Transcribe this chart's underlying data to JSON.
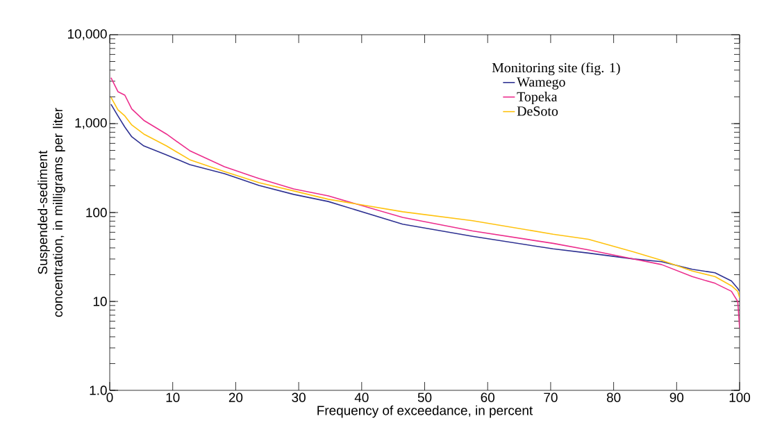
{
  "chart_data": {
    "type": "line",
    "xlabel": "Frequency of exceedance, in percent",
    "ylabel": "Suspended-sediment concentration, in milligrams per liter",
    "legend_title": "Monitoring site (fig. 1)",
    "legend": "top right",
    "log": "y",
    "grid": false,
    "x": [
      0.2,
      1.3,
      2.4,
      3.5,
      5.4,
      9,
      12.7,
      18.2,
      23.7,
      29.2,
      34.7,
      46.5,
      57.6,
      70.4,
      76,
      83.2,
      87.6,
      92.5,
      96.1,
      98.7,
      99.7,
      100
    ],
    "xlim": [
      0,
      100
    ],
    "xticks": [
      0,
      10,
      20,
      30,
      40,
      50,
      60,
      70,
      80,
      90,
      100
    ],
    "ylim": [
      1,
      10000
    ],
    "yticks": [
      {
        "value": 1,
        "label": "1.0"
      },
      10,
      100,
      {
        "value": 1000,
        "label": "1,000"
      },
      {
        "value": 10000,
        "label": "10,000"
      }
    ],
    "series": [
      {
        "name": "Wamego",
        "color": "#2e3192",
        "values": [
          1650,
          1220,
          914,
          711,
          562,
          445,
          346,
          274,
          202,
          160,
          133,
          74,
          54,
          39,
          35,
          30,
          28,
          23,
          21,
          17,
          14,
          13
        ]
      },
      {
        "name": "Topeka",
        "color": "#ec2d8c",
        "values": [
          3280,
          2290,
          2090,
          1460,
          1090,
          764,
          496,
          328,
          241,
          184,
          154,
          88,
          62,
          45,
          38,
          30,
          26,
          19,
          16,
          13,
          10,
          5
        ]
      },
      {
        "name": "DeSoto",
        "color": "#ffc20e",
        "values": [
          1980,
          1430,
          1220,
          965,
          764,
          562,
          393,
          289,
          217,
          175,
          141,
          102,
          81,
          57,
          50,
          36,
          29,
          22,
          19,
          15,
          13,
          11
        ]
      }
    ]
  }
}
